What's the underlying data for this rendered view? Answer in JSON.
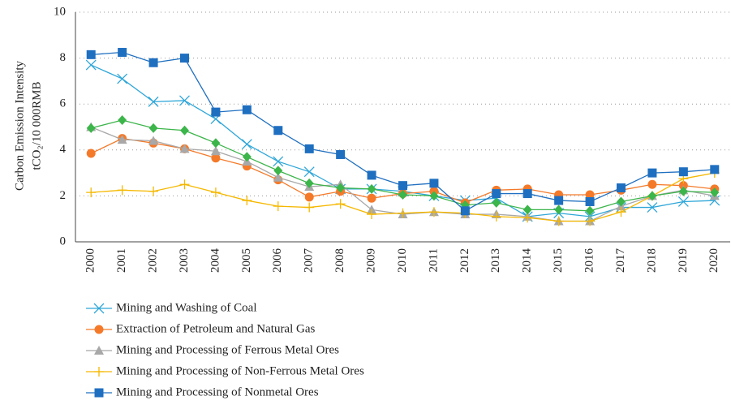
{
  "chart_data": {
    "type": "line",
    "y_label": [
      "Carbon Emission Intensity",
      "tCO₂/10 000RMB"
    ],
    "categories": [
      "2000",
      "2001",
      "2002",
      "2003",
      "2004",
      "2005",
      "2006",
      "2007",
      "2008",
      "2009",
      "2010",
      "2011",
      "2012",
      "2013",
      "2014",
      "2015",
      "2016",
      "2017",
      "2018",
      "2019",
      "2020"
    ],
    "ylim": [
      0,
      10
    ],
    "yticks": [
      0,
      2,
      4,
      6,
      8,
      10
    ],
    "grid": true,
    "series": [
      {
        "name": "Mining and Washing of Coal",
        "color": "#2ea6d8",
        "marker": "x",
        "values": [
          7.7,
          7.1,
          6.1,
          6.15,
          5.35,
          4.25,
          3.5,
          3.05,
          2.3,
          2.3,
          2.2,
          2.0,
          1.8,
          1.9,
          1.1,
          1.25,
          1.1,
          1.5,
          1.5,
          1.75,
          1.8
        ]
      },
      {
        "name": "Extraction of Petroleum and Natural Gas",
        "color": "#f47a2a",
        "marker": "circle",
        "values": [
          3.85,
          4.5,
          4.3,
          4.05,
          3.65,
          3.3,
          2.7,
          1.95,
          2.2,
          1.9,
          2.1,
          2.2,
          1.7,
          2.25,
          2.3,
          2.05,
          2.05,
          2.25,
          2.5,
          2.45,
          2.3
        ]
      },
      {
        "name": "Mining and Processing of Ferrous Metal Ores",
        "color": "#a8a8a8",
        "marker": "triangle",
        "values": [
          5.0,
          4.45,
          4.4,
          4.05,
          3.95,
          3.5,
          2.8,
          2.4,
          2.5,
          1.4,
          1.2,
          1.3,
          1.2,
          1.2,
          1.1,
          0.9,
          0.9,
          1.55,
          2.0,
          2.25,
          2.0
        ]
      },
      {
        "name": "Mining and Processing of Non-Ferrous Metal Ores",
        "color": "#f5b800",
        "marker": "plus",
        "values": [
          2.15,
          2.25,
          2.2,
          2.5,
          2.15,
          1.8,
          1.55,
          1.5,
          1.65,
          1.2,
          1.25,
          1.3,
          1.25,
          1.1,
          1.05,
          0.9,
          0.9,
          1.3,
          2.0,
          2.75,
          3.0
        ]
      },
      {
        "color": "#3cb54a",
        "marker": "diamond",
        "values": [
          4.95,
          5.3,
          4.95,
          4.85,
          4.3,
          3.7,
          3.1,
          2.55,
          2.35,
          2.3,
          2.05,
          2.0,
          1.6,
          1.7,
          1.4,
          1.4,
          1.35,
          1.75,
          2.0,
          2.2,
          2.15
        ]
      },
      {
        "name": "Mining and Processing of Nonmetal Ores",
        "color": "#1f6fc0",
        "marker": "square",
        "values": [
          8.15,
          8.25,
          7.8,
          8.0,
          5.65,
          5.75,
          4.85,
          4.05,
          3.8,
          2.9,
          2.45,
          2.55,
          1.35,
          2.1,
          2.1,
          1.8,
          1.75,
          2.35,
          3.0,
          3.05,
          3.15
        ]
      }
    ]
  }
}
